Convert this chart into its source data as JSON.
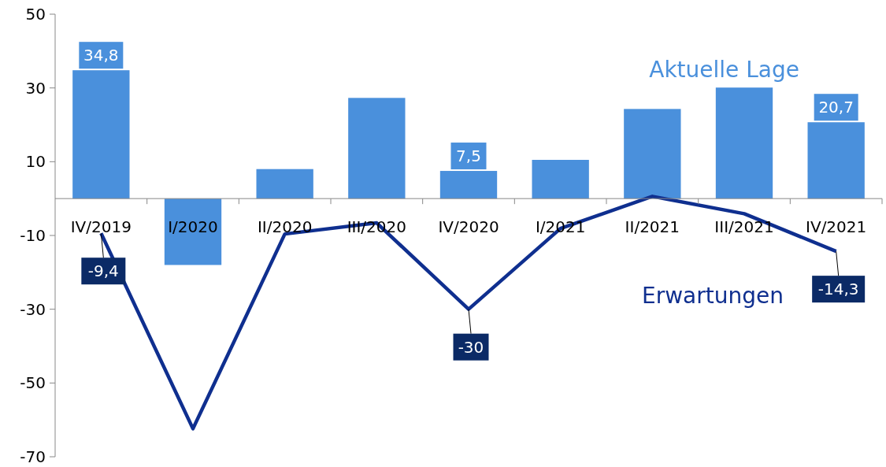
{
  "chart_data": {
    "type": "bar",
    "categories": [
      "IV/2019",
      "I/2020",
      "II/2020",
      "III/2020",
      "IV/2020",
      "I/2021",
      "II/2021",
      "III/2021",
      "IV/2021"
    ],
    "series": [
      {
        "name": "Aktuelle Lage",
        "color": "#4a90dc",
        "values": [
          34.8,
          -18,
          8,
          27.3,
          7.5,
          10.5,
          24.3,
          30.1,
          20.7
        ],
        "value_labels": [
          "34,8",
          null,
          null,
          null,
          "7,5",
          null,
          null,
          null,
          "20,7"
        ]
      },
      {
        "name": "Erwartungen",
        "type": "line",
        "color": "#0f2f8f",
        "values": [
          -9.4,
          -62.4,
          -9.6,
          -6.6,
          -30,
          -8.1,
          0.6,
          -4.1,
          -14.3
        ],
        "value_labels": [
          "-9,4",
          null,
          null,
          null,
          "-30",
          null,
          null,
          null,
          "-14,3"
        ]
      }
    ],
    "ylim": [
      -70,
      50
    ],
    "yticks": [
      50,
      30,
      10,
      -10,
      -30,
      -50,
      -70
    ],
    "grid": false,
    "line_style": "solid",
    "marker": "none"
  }
}
